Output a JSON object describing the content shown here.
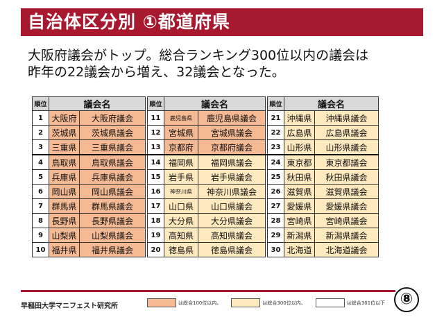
{
  "header": {
    "title": "自治体区分別 ①都道府県",
    "subtitle_line1": "大阪府議会がトップ。総合ランキング300位以内の議会は",
    "subtitle_line2": "昨年の22議会から増え、32議会となった。"
  },
  "table": {
    "rank_header": "順位",
    "name_header": "議会名",
    "columns": [
      [
        {
          "rank": "1",
          "pref": "大阪府",
          "assembly": "大阪府議会",
          "tier": "top100"
        },
        {
          "rank": "2",
          "pref": "茨城県",
          "assembly": "茨城県議会",
          "tier": "top100"
        },
        {
          "rank": "3",
          "pref": "三重県",
          "assembly": "三重県議会",
          "tier": "top100"
        },
        {
          "rank": "4",
          "pref": "鳥取県",
          "assembly": "鳥取県議会",
          "tier": "top100"
        },
        {
          "rank": "5",
          "pref": "兵庫県",
          "assembly": "兵庫県議会",
          "tier": "top100"
        },
        {
          "rank": "6",
          "pref": "岡山県",
          "assembly": "岡山県議会",
          "tier": "top100"
        },
        {
          "rank": "7",
          "pref": "群馬県",
          "assembly": "群馬県議会",
          "tier": "top100"
        },
        {
          "rank": "8",
          "pref": "長野県",
          "assembly": "長野県議会",
          "tier": "top100"
        },
        {
          "rank": "9",
          "pref": "山梨県",
          "assembly": "山梨県議会",
          "tier": "top100"
        },
        {
          "rank": "10",
          "pref": "福井県",
          "assembly": "福井県議会",
          "tier": "top100"
        }
      ],
      [
        {
          "rank": "11",
          "pref": "鹿児島県",
          "assembly": "鹿児島県議会",
          "tier": "top100",
          "small": true
        },
        {
          "rank": "12",
          "pref": "宮城県",
          "assembly": "宮城県議会",
          "tier": "top100"
        },
        {
          "rank": "13",
          "pref": "京都府",
          "assembly": "京都府議会",
          "tier": "top100"
        },
        {
          "rank": "14",
          "pref": "福岡県",
          "assembly": "福岡県議会",
          "tier": "top300"
        },
        {
          "rank": "15",
          "pref": "岩手県",
          "assembly": "岩手県議会",
          "tier": "top300"
        },
        {
          "rank": "16",
          "pref": "神奈川県",
          "assembly": "神奈川県議会",
          "tier": "top300",
          "small": true
        },
        {
          "rank": "17",
          "pref": "山口県",
          "assembly": "山口県議会",
          "tier": "top300"
        },
        {
          "rank": "18",
          "pref": "大分県",
          "assembly": "大分県議会",
          "tier": "top300"
        },
        {
          "rank": "19",
          "pref": "高知県",
          "assembly": "高知県議会",
          "tier": "top300"
        },
        {
          "rank": "20",
          "pref": "徳島県",
          "assembly": "徳島県議会",
          "tier": "top300"
        }
      ],
      [
        {
          "rank": "21",
          "pref": "沖縄県",
          "assembly": "沖縄県議会",
          "tier": "top300"
        },
        {
          "rank": "22",
          "pref": "広島県",
          "assembly": "広島県議会",
          "tier": "top300"
        },
        {
          "rank": "23",
          "pref": "山形県",
          "assembly": "山形県議会",
          "tier": "top300"
        },
        {
          "rank": "24",
          "pref": "東京都",
          "assembly": "東京都議会",
          "tier": "top300"
        },
        {
          "rank": "25",
          "pref": "秋田県",
          "assembly": "秋田県議会",
          "tier": "top300"
        },
        {
          "rank": "26",
          "pref": "滋賀県",
          "assembly": "滋賀県議会",
          "tier": "top300"
        },
        {
          "rank": "27",
          "pref": "愛媛県",
          "assembly": "愛媛県議会",
          "tier": "top300"
        },
        {
          "rank": "28",
          "pref": "宮崎県",
          "assembly": "宮崎県議会",
          "tier": "top300"
        },
        {
          "rank": "29",
          "pref": "新潟県",
          "assembly": "新潟県議会",
          "tier": "top300"
        },
        {
          "rank": "30",
          "pref": "北海道",
          "assembly": "北海道議会",
          "tier": "top300"
        }
      ]
    ]
  },
  "legend": [
    {
      "label": "は総合100位以内、",
      "tier": "top100"
    },
    {
      "label": "は総合300位以内、",
      "tier": "top300"
    },
    {
      "label": "は総合301位以下",
      "tier": "below"
    }
  ],
  "colors": {
    "title_bar": "#a6192e",
    "top100": "#f5b993",
    "top300": "#ffe9bf",
    "below": "#ffffff"
  },
  "footer": {
    "organization": "早稲田大学マニフェスト研究所",
    "page_number": "⑧"
  }
}
